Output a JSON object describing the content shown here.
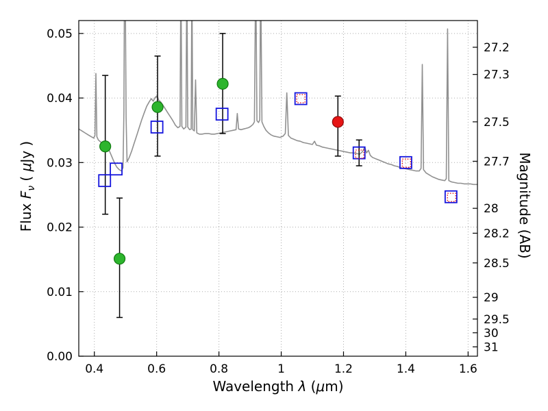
{
  "figure": {
    "xlabel_pre": "Wavelength  ",
    "xlabel_lambda": "λ",
    "xlabel_post_pre": " (",
    "xlabel_mu": "μ",
    "xlabel_post_end": "m)",
    "ylabel_left_pre": "Flux  ",
    "ylabel_left_F": "F",
    "ylabel_left_nu": "ν",
    "ylabel_left_post_pre": "  ( ",
    "ylabel_left_mu": "μ",
    "ylabel_left_post_end": "Jy )",
    "ylabel_right": "Magnitude (AB)"
  },
  "chart_data": {
    "type": "line",
    "title": "",
    "xlabel": "Wavelength λ (μm)",
    "ylabel": "Flux Fν ( μJy )",
    "ylabel_right": "Magnitude (AB)",
    "xlim": [
      0.35,
      1.63
    ],
    "ylim": [
      0,
      0.052
    ],
    "x_ticks": [
      0.4,
      0.6,
      0.8,
      1.0,
      1.2,
      1.4,
      1.6
    ],
    "x_tick_labels": [
      "0.4",
      "0.6",
      "0.8",
      "1",
      "1.2",
      "1.4",
      "1.6"
    ],
    "y_ticks": [
      0,
      0.01,
      0.02,
      0.03,
      0.04,
      0.05
    ],
    "y_tick_labels": [
      "0.00",
      "0.01",
      "0.02",
      "0.03",
      "0.04",
      "0.05"
    ],
    "mag_ticks": [
      27.2,
      27.3,
      27.5,
      27.7,
      28,
      28.2,
      28.5,
      29,
      29.5,
      30,
      31
    ],
    "mag_tick_labels": [
      "27.2",
      "27.3",
      "27.5",
      "27.7",
      "28",
      "28.2",
      "28.5",
      "29",
      "29.5",
      "30",
      "31"
    ],
    "mag_zeropoint_ujy": 23.9,
    "grid": {
      "show": true,
      "linestyle": "dotted",
      "color": "#aaaaaa"
    },
    "colors": {
      "spectrum": "#909090",
      "green_fill": "#2db52d",
      "green_edge": "#107a10",
      "blue_edge": "#1414dd",
      "red_edge": "#e61515",
      "red_fill": "#e61515",
      "errorbar": "#000000",
      "frame": "#000000"
    },
    "spectrum": {
      "name": "model-spectrum",
      "color": "#909090",
      "points": [
        [
          0.35,
          0.0352
        ],
        [
          0.36,
          0.0349
        ],
        [
          0.37,
          0.0346
        ],
        [
          0.38,
          0.0343
        ],
        [
          0.39,
          0.034
        ],
        [
          0.398,
          0.0338
        ],
        [
          0.402,
          0.0342
        ],
        [
          0.405,
          0.0438
        ],
        [
          0.408,
          0.034
        ],
        [
          0.413,
          0.0335
        ],
        [
          0.42,
          0.0332
        ],
        [
          0.428,
          0.033
        ],
        [
          0.436,
          0.0328
        ],
        [
          0.443,
          0.0324
        ],
        [
          0.45,
          0.0316
        ],
        [
          0.458,
          0.0307
        ],
        [
          0.465,
          0.0299
        ],
        [
          0.472,
          0.0293
        ],
        [
          0.48,
          0.0289
        ],
        [
          0.487,
          0.0287
        ],
        [
          0.492,
          0.0292
        ],
        [
          0.495,
          0.038
        ],
        [
          0.497,
          0.06
        ],
        [
          0.499,
          0.06
        ],
        [
          0.502,
          0.037
        ],
        [
          0.505,
          0.0301
        ],
        [
          0.512,
          0.0308
        ],
        [
          0.52,
          0.0318
        ],
        [
          0.528,
          0.033
        ],
        [
          0.536,
          0.0342
        ],
        [
          0.544,
          0.0354
        ],
        [
          0.552,
          0.0366
        ],
        [
          0.56,
          0.0377
        ],
        [
          0.568,
          0.0387
        ],
        [
          0.576,
          0.0394
        ],
        [
          0.583,
          0.0399
        ],
        [
          0.589,
          0.0395
        ],
        [
          0.594,
          0.04
        ],
        [
          0.6,
          0.0403
        ],
        [
          0.606,
          0.0397
        ],
        [
          0.613,
          0.0394
        ],
        [
          0.62,
          0.0389
        ],
        [
          0.628,
          0.0383
        ],
        [
          0.636,
          0.0377
        ],
        [
          0.644,
          0.0371
        ],
        [
          0.652,
          0.0365
        ],
        [
          0.66,
          0.0358
        ],
        [
          0.668,
          0.0354
        ],
        [
          0.675,
          0.0356
        ],
        [
          0.678,
          0.06
        ],
        [
          0.681,
          0.0356
        ],
        [
          0.687,
          0.0352
        ],
        [
          0.694,
          0.0355
        ],
        [
          0.697,
          0.06
        ],
        [
          0.7,
          0.0355
        ],
        [
          0.706,
          0.0351
        ],
        [
          0.711,
          0.0352
        ],
        [
          0.713,
          0.06
        ],
        [
          0.716,
          0.0351
        ],
        [
          0.721,
          0.0349
        ],
        [
          0.725,
          0.0428
        ],
        [
          0.729,
          0.0346
        ],
        [
          0.737,
          0.0344
        ],
        [
          0.746,
          0.0344
        ],
        [
          0.756,
          0.0345
        ],
        [
          0.766,
          0.0345
        ],
        [
          0.776,
          0.0344
        ],
        [
          0.786,
          0.0344
        ],
        [
          0.796,
          0.0345
        ],
        [
          0.806,
          0.0346
        ],
        [
          0.816,
          0.0347
        ],
        [
          0.826,
          0.0348
        ],
        [
          0.836,
          0.0349
        ],
        [
          0.846,
          0.035
        ],
        [
          0.855,
          0.0351
        ],
        [
          0.859,
          0.0376
        ],
        [
          0.863,
          0.0352
        ],
        [
          0.871,
          0.0351
        ],
        [
          0.879,
          0.0352
        ],
        [
          0.887,
          0.0353
        ],
        [
          0.895,
          0.0354
        ],
        [
          0.902,
          0.0356
        ],
        [
          0.909,
          0.0359
        ],
        [
          0.914,
          0.0363
        ],
        [
          0.918,
          0.06
        ],
        [
          0.922,
          0.0365
        ],
        [
          0.927,
          0.0362
        ],
        [
          0.931,
          0.0366
        ],
        [
          0.934,
          0.06
        ],
        [
          0.938,
          0.0363
        ],
        [
          0.944,
          0.0356
        ],
        [
          0.951,
          0.035
        ],
        [
          0.959,
          0.0346
        ],
        [
          0.967,
          0.0343
        ],
        [
          0.976,
          0.0341
        ],
        [
          0.986,
          0.034
        ],
        [
          0.996,
          0.0339
        ],
        [
          1.006,
          0.0341
        ],
        [
          1.013,
          0.0345
        ],
        [
          1.018,
          0.0408
        ],
        [
          1.023,
          0.0342
        ],
        [
          1.031,
          0.0338
        ],
        [
          1.041,
          0.0336
        ],
        [
          1.051,
          0.0334
        ],
        [
          1.061,
          0.0333
        ],
        [
          1.071,
          0.0331
        ],
        [
          1.081,
          0.033
        ],
        [
          1.091,
          0.0329
        ],
        [
          1.1,
          0.0328
        ],
        [
          1.107,
          0.0333
        ],
        [
          1.113,
          0.0327
        ],
        [
          1.122,
          0.0326
        ],
        [
          1.132,
          0.0324
        ],
        [
          1.142,
          0.0323
        ],
        [
          1.152,
          0.0322
        ],
        [
          1.162,
          0.0321
        ],
        [
          1.172,
          0.032
        ],
        [
          1.182,
          0.0319
        ],
        [
          1.192,
          0.0318
        ],
        [
          1.202,
          0.0317
        ],
        [
          1.212,
          0.0316
        ],
        [
          1.222,
          0.0315
        ],
        [
          1.232,
          0.0315
        ],
        [
          1.242,
          0.0314
        ],
        [
          1.252,
          0.0313
        ],
        [
          1.261,
          0.0317
        ],
        [
          1.268,
          0.0324
        ],
        [
          1.274,
          0.0315
        ],
        [
          1.28,
          0.0319
        ],
        [
          1.286,
          0.0311
        ],
        [
          1.293,
          0.0308
        ],
        [
          1.303,
          0.0306
        ],
        [
          1.313,
          0.0304
        ],
        [
          1.323,
          0.0302
        ],
        [
          1.333,
          0.03
        ],
        [
          1.343,
          0.0298
        ],
        [
          1.353,
          0.0297
        ],
        [
          1.363,
          0.0295
        ],
        [
          1.373,
          0.0294
        ],
        [
          1.383,
          0.0292
        ],
        [
          1.393,
          0.0291
        ],
        [
          1.403,
          0.029
        ],
        [
          1.413,
          0.0289
        ],
        [
          1.423,
          0.0288
        ],
        [
          1.433,
          0.0287
        ],
        [
          1.443,
          0.0287
        ],
        [
          1.449,
          0.0291
        ],
        [
          1.453,
          0.0452
        ],
        [
          1.457,
          0.0289
        ],
        [
          1.465,
          0.0284
        ],
        [
          1.475,
          0.0281
        ],
        [
          1.485,
          0.0278
        ],
        [
          1.495,
          0.0276
        ],
        [
          1.505,
          0.0274
        ],
        [
          1.515,
          0.0273
        ],
        [
          1.525,
          0.0272
        ],
        [
          1.53,
          0.0275
        ],
        [
          1.534,
          0.0507
        ],
        [
          1.538,
          0.0272
        ],
        [
          1.547,
          0.027
        ],
        [
          1.557,
          0.0269
        ],
        [
          1.567,
          0.0268
        ],
        [
          1.577,
          0.0268
        ],
        [
          1.587,
          0.0267
        ],
        [
          1.597,
          0.0267
        ],
        [
          1.607,
          0.0267
        ],
        [
          1.617,
          0.0266
        ],
        [
          1.627,
          0.0266
        ],
        [
          1.63,
          0.0266
        ]
      ]
    },
    "series": [
      {
        "name": "blue-square-photometry",
        "marker": "square",
        "size": 17,
        "fill": "none",
        "edge": "#1414dd",
        "edge_width": 1.8,
        "dash": "",
        "points": [
          {
            "x": 0.433,
            "y": 0.0272
          },
          {
            "x": 0.47,
            "y": 0.029
          },
          {
            "x": 0.601,
            "y": 0.0355
          },
          {
            "x": 0.81,
            "y": 0.0375
          },
          {
            "x": 1.063,
            "y": 0.0399
          },
          {
            "x": 1.25,
            "y": 0.0315,
            "err_lo": 0.002,
            "err_hi": 0.002
          },
          {
            "x": 1.4,
            "y": 0.03
          },
          {
            "x": 1.545,
            "y": 0.0247
          }
        ]
      },
      {
        "name": "red-square-photometry",
        "marker": "square",
        "size": 12,
        "fill": "none",
        "edge": "#e61515",
        "edge_width": 1.4,
        "dash": "1.5,2.2",
        "points": [
          {
            "x": 1.063,
            "y": 0.0399
          },
          {
            "x": 1.252,
            "y": 0.0313
          },
          {
            "x": 1.402,
            "y": 0.0299
          },
          {
            "x": 1.547,
            "y": 0.0246
          }
        ]
      },
      {
        "name": "green-circle-photometry",
        "marker": "circle",
        "size": 16,
        "fill": "#2db52d",
        "edge": "#107a10",
        "edge_width": 1.2,
        "dash": "",
        "points": [
          {
            "x": 0.435,
            "y": 0.0325,
            "err_lo": 0.0105,
            "err_hi": 0.011
          },
          {
            "x": 0.481,
            "y": 0.0151,
            "err_lo": 0.0091,
            "err_hi": 0.0094
          },
          {
            "x": 0.603,
            "y": 0.0386,
            "err_lo": 0.0076,
            "err_hi": 0.0079
          },
          {
            "x": 0.812,
            "y": 0.0422,
            "err_lo": 0.0077,
            "err_hi": 0.0078
          }
        ]
      },
      {
        "name": "red-circle-photometry",
        "marker": "circle",
        "size": 16,
        "fill": "#e61515",
        "edge": "#8f0a0a",
        "edge_width": 1.2,
        "dash": "",
        "points": [
          {
            "x": 1.182,
            "y": 0.0363,
            "err_lo": 0.0053,
            "err_hi": 0.004
          }
        ]
      }
    ]
  }
}
